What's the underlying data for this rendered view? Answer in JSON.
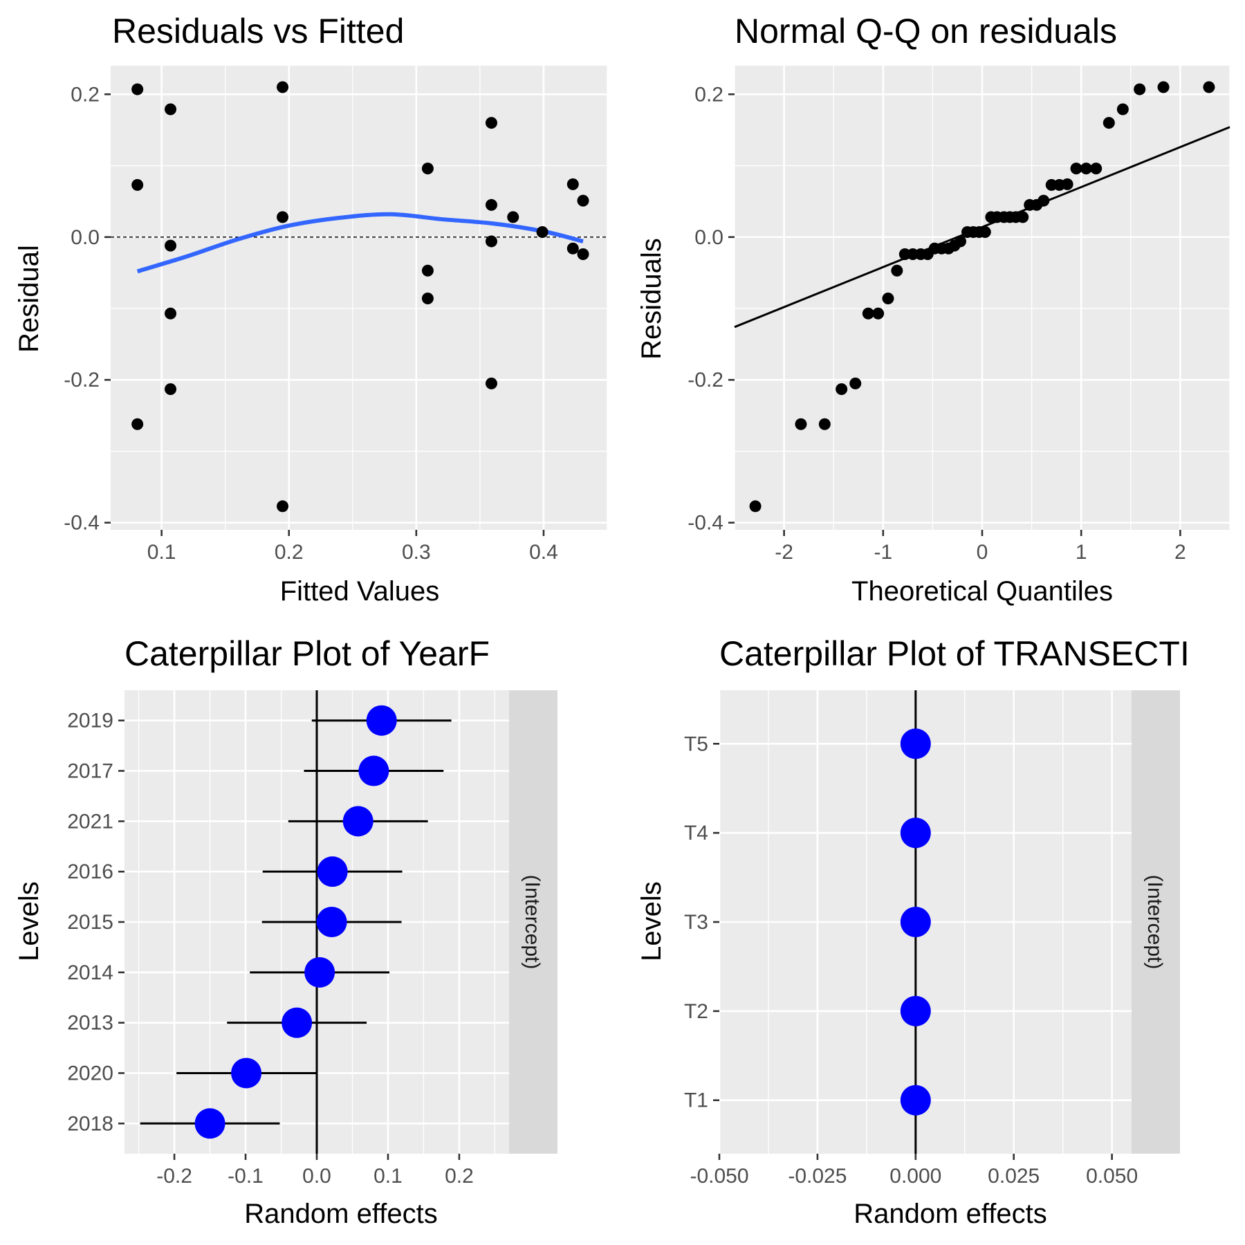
{
  "chart_data": [
    {
      "type": "scatter",
      "title": "Residuals vs Fitted",
      "xlabel": "Fitted Values",
      "ylabel": "Residual",
      "xlim": [
        0.06,
        0.45
      ],
      "ylim": [
        -0.41,
        0.24
      ],
      "x_ticks": [
        0.1,
        0.2,
        0.3,
        0.4
      ],
      "x_tick_labels": [
        "0.1",
        "0.2",
        "0.3",
        "0.4"
      ],
      "y_ticks": [
        -0.4,
        -0.2,
        0.0,
        0.2
      ],
      "y_tick_labels": [
        "-0.4",
        "-0.2",
        "0.0",
        "0.2"
      ],
      "reference_line_y": 0.0,
      "points": [
        {
          "x": 0.081,
          "y": 0.207
        },
        {
          "x": 0.081,
          "y": 0.073
        },
        {
          "x": 0.081,
          "y": -0.262
        },
        {
          "x": 0.107,
          "y": 0.179
        },
        {
          "x": 0.107,
          "y": -0.012
        },
        {
          "x": 0.107,
          "y": -0.107
        },
        {
          "x": 0.107,
          "y": -0.213
        },
        {
          "x": 0.195,
          "y": 0.21
        },
        {
          "x": 0.195,
          "y": 0.028
        },
        {
          "x": 0.195,
          "y": -0.377
        },
        {
          "x": 0.309,
          "y": 0.096
        },
        {
          "x": 0.309,
          "y": -0.047
        },
        {
          "x": 0.309,
          "y": -0.086
        },
        {
          "x": 0.359,
          "y": 0.16
        },
        {
          "x": 0.359,
          "y": 0.045
        },
        {
          "x": 0.359,
          "y": -0.006
        },
        {
          "x": 0.359,
          "y": -0.205
        },
        {
          "x": 0.376,
          "y": 0.028
        },
        {
          "x": 0.399,
          "y": 0.007
        },
        {
          "x": 0.423,
          "y": 0.074
        },
        {
          "x": 0.423,
          "y": -0.016
        },
        {
          "x": 0.431,
          "y": 0.051
        },
        {
          "x": 0.431,
          "y": -0.024
        }
      ],
      "smooth": {
        "color": "#3366FF",
        "x": [
          0.081,
          0.12,
          0.16,
          0.2,
          0.24,
          0.28,
          0.32,
          0.36,
          0.4,
          0.431
        ],
        "y": [
          -0.048,
          -0.027,
          -0.003,
          0.016,
          0.027,
          0.032,
          0.025,
          0.019,
          0.008,
          -0.006
        ]
      }
    },
    {
      "type": "scatter",
      "title": "Normal Q-Q on residuals",
      "xlabel": "Theoretical Quantiles",
      "ylabel": "Residuals",
      "xlim": [
        -2.5,
        2.5
      ],
      "ylim": [
        -0.41,
        0.24
      ],
      "x_ticks": [
        -2,
        -1,
        0,
        1,
        2
      ],
      "x_tick_labels": [
        "-2",
        "-1",
        "0",
        "1",
        "2"
      ],
      "y_ticks": [
        -0.4,
        -0.2,
        0.0,
        0.2
      ],
      "y_tick_labels": [
        "-0.4",
        "-0.2",
        "0.0",
        "0.2"
      ],
      "points": [
        {
          "x": -2.29,
          "y": -0.377
        },
        {
          "x": -1.83,
          "y": -0.262
        },
        {
          "x": -1.59,
          "y": -0.262
        },
        {
          "x": -1.42,
          "y": -0.213
        },
        {
          "x": -1.28,
          "y": -0.205
        },
        {
          "x": -1.15,
          "y": -0.107
        },
        {
          "x": -1.05,
          "y": -0.107
        },
        {
          "x": -0.95,
          "y": -0.086
        },
        {
          "x": -0.86,
          "y": -0.047
        },
        {
          "x": -0.78,
          "y": -0.024
        },
        {
          "x": -0.7,
          "y": -0.024
        },
        {
          "x": -0.62,
          "y": -0.024
        },
        {
          "x": -0.55,
          "y": -0.024
        },
        {
          "x": -0.48,
          "y": -0.016
        },
        {
          "x": -0.41,
          "y": -0.016
        },
        {
          "x": -0.34,
          "y": -0.016
        },
        {
          "x": -0.28,
          "y": -0.012
        },
        {
          "x": -0.22,
          "y": -0.006
        },
        {
          "x": -0.15,
          "y": 0.007
        },
        {
          "x": -0.09,
          "y": 0.007
        },
        {
          "x": -0.03,
          "y": 0.007
        },
        {
          "x": 0.03,
          "y": 0.007
        },
        {
          "x": 0.09,
          "y": 0.028
        },
        {
          "x": 0.15,
          "y": 0.028
        },
        {
          "x": 0.22,
          "y": 0.028
        },
        {
          "x": 0.28,
          "y": 0.028
        },
        {
          "x": 0.34,
          "y": 0.028
        },
        {
          "x": 0.41,
          "y": 0.028
        },
        {
          "x": 0.48,
          "y": 0.045
        },
        {
          "x": 0.55,
          "y": 0.045
        },
        {
          "x": 0.62,
          "y": 0.051
        },
        {
          "x": 0.7,
          "y": 0.073
        },
        {
          "x": 0.78,
          "y": 0.073
        },
        {
          "x": 0.86,
          "y": 0.074
        },
        {
          "x": 0.95,
          "y": 0.096
        },
        {
          "x": 1.05,
          "y": 0.096
        },
        {
          "x": 1.15,
          "y": 0.096
        },
        {
          "x": 1.28,
          "y": 0.16
        },
        {
          "x": 1.42,
          "y": 0.179
        },
        {
          "x": 1.59,
          "y": 0.207
        },
        {
          "x": 1.83,
          "y": 0.21
        },
        {
          "x": 2.29,
          "y": 0.21
        }
      ],
      "qq_line": {
        "x": [
          -2.5,
          2.5
        ],
        "y": [
          -0.126,
          0.154
        ]
      }
    },
    {
      "type": "caterpillar",
      "title": "Caterpillar Plot of  YearF",
      "xlabel": "Random effects",
      "ylabel": "Levels",
      "strip_label": "(Intercept)",
      "xlim": [
        -0.27,
        0.27
      ],
      "x_ticks": [
        -0.2,
        -0.1,
        0.0,
        0.1,
        0.2
      ],
      "x_tick_labels": [
        "-0.2",
        "-0.1",
        "0.0",
        "0.1",
        "0.2"
      ],
      "reference_line_x": 0.0,
      "point_color": "#0000FF",
      "levels": [
        "2018",
        "2020",
        "2013",
        "2014",
        "2015",
        "2016",
        "2021",
        "2017",
        "2019"
      ],
      "estimates": [
        -0.15,
        -0.099,
        -0.028,
        0.004,
        0.021,
        0.022,
        0.058,
        0.08,
        0.091
      ],
      "lower": [
        -0.248,
        -0.197,
        -0.126,
        -0.094,
        -0.077,
        -0.076,
        -0.04,
        -0.018,
        -0.007
      ],
      "upper": [
        -0.052,
        -0.001,
        0.07,
        0.102,
        0.119,
        0.12,
        0.156,
        0.178,
        0.189
      ]
    },
    {
      "type": "caterpillar",
      "title": "Caterpillar Plot of  TRANSECTI",
      "xlabel": "Random effects",
      "ylabel": "Levels",
      "strip_label": "(Intercept)",
      "xlim": [
        -0.05,
        0.055
      ],
      "x_ticks": [
        -0.05,
        -0.025,
        0.0,
        0.025,
        0.05
      ],
      "x_tick_labels": [
        "-0.050",
        "-0.025",
        "0.000",
        "0.025",
        "0.050"
      ],
      "reference_line_x": 0.0,
      "point_color": "#0000FF",
      "levels": [
        "T1",
        "T2",
        "T3",
        "T4",
        "T5"
      ],
      "estimates": [
        0.0,
        0.0,
        0.0,
        0.0,
        0.0
      ],
      "lower": [
        0.0,
        0.0,
        0.0,
        0.0,
        0.0
      ],
      "upper": [
        0.0,
        0.0,
        0.0,
        0.0,
        0.0
      ]
    }
  ]
}
